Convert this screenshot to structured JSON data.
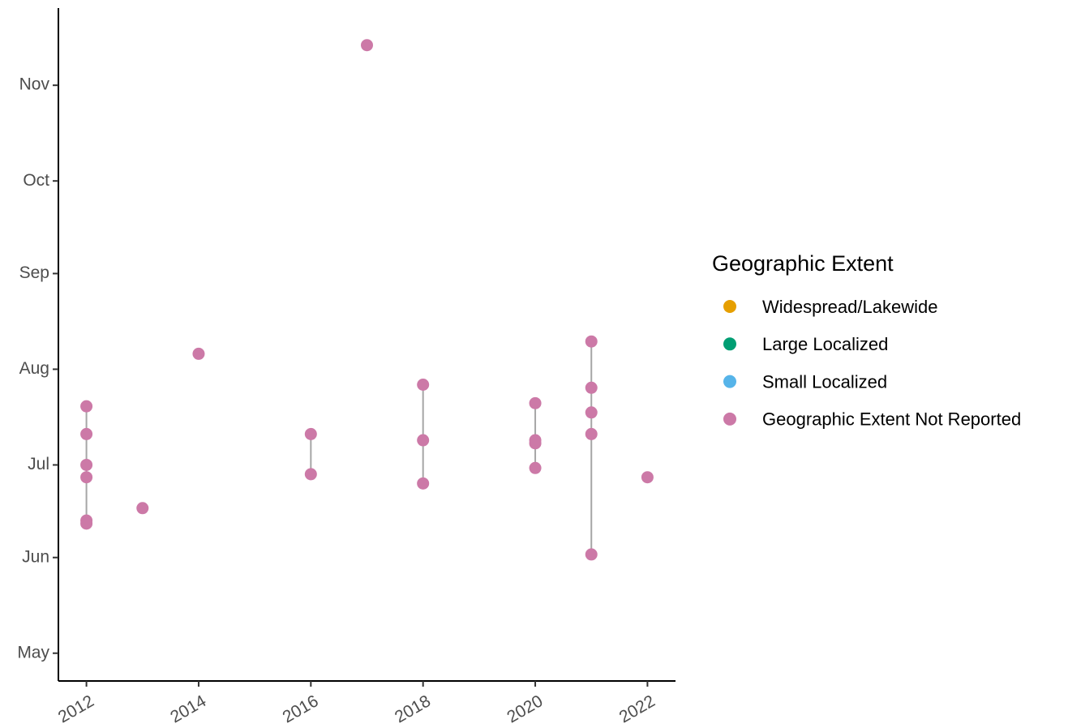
{
  "chart_data": {
    "type": "scatter",
    "legend_title": "Geographic Extent",
    "xlim": [
      2011.5,
      2022.5
    ],
    "xticks": [
      2012,
      2014,
      2016,
      2018,
      2020,
      2022
    ],
    "ylim": [
      112,
      330
    ],
    "yticks": [
      {
        "value": 121,
        "label": "May"
      },
      {
        "value": 152,
        "label": "Jun"
      },
      {
        "value": 182,
        "label": "Jul"
      },
      {
        "value": 213,
        "label": "Aug"
      },
      {
        "value": 244,
        "label": "Sep"
      },
      {
        "value": 274,
        "label": "Oct"
      },
      {
        "value": 305,
        "label": "Nov"
      }
    ],
    "range_line_color": "#a6a6a6",
    "series": [
      {
        "name": "Widespread/Lakewide",
        "color": "#E69F00",
        "x": [],
        "values": []
      },
      {
        "name": "Large Localized",
        "color": "#009E73",
        "x": [],
        "values": []
      },
      {
        "name": "Small Localized",
        "color": "#56B4E9",
        "x": [],
        "values": []
      },
      {
        "name": "Geographic Extent Not Reported",
        "color": "#CC79A7",
        "x": [
          2012,
          2012,
          2012,
          2012,
          2012,
          2012,
          2013,
          2014,
          2016,
          2016,
          2017,
          2018,
          2018,
          2018,
          2020,
          2020,
          2020,
          2020,
          2021,
          2021,
          2021,
          2021,
          2021,
          2022
        ],
        "values": [
          201,
          192,
          182,
          178,
          164,
          163,
          168,
          218,
          192,
          179,
          318,
          208,
          190,
          176,
          202,
          190,
          189,
          181,
          222,
          207,
          199,
          192,
          153,
          178
        ]
      }
    ]
  }
}
